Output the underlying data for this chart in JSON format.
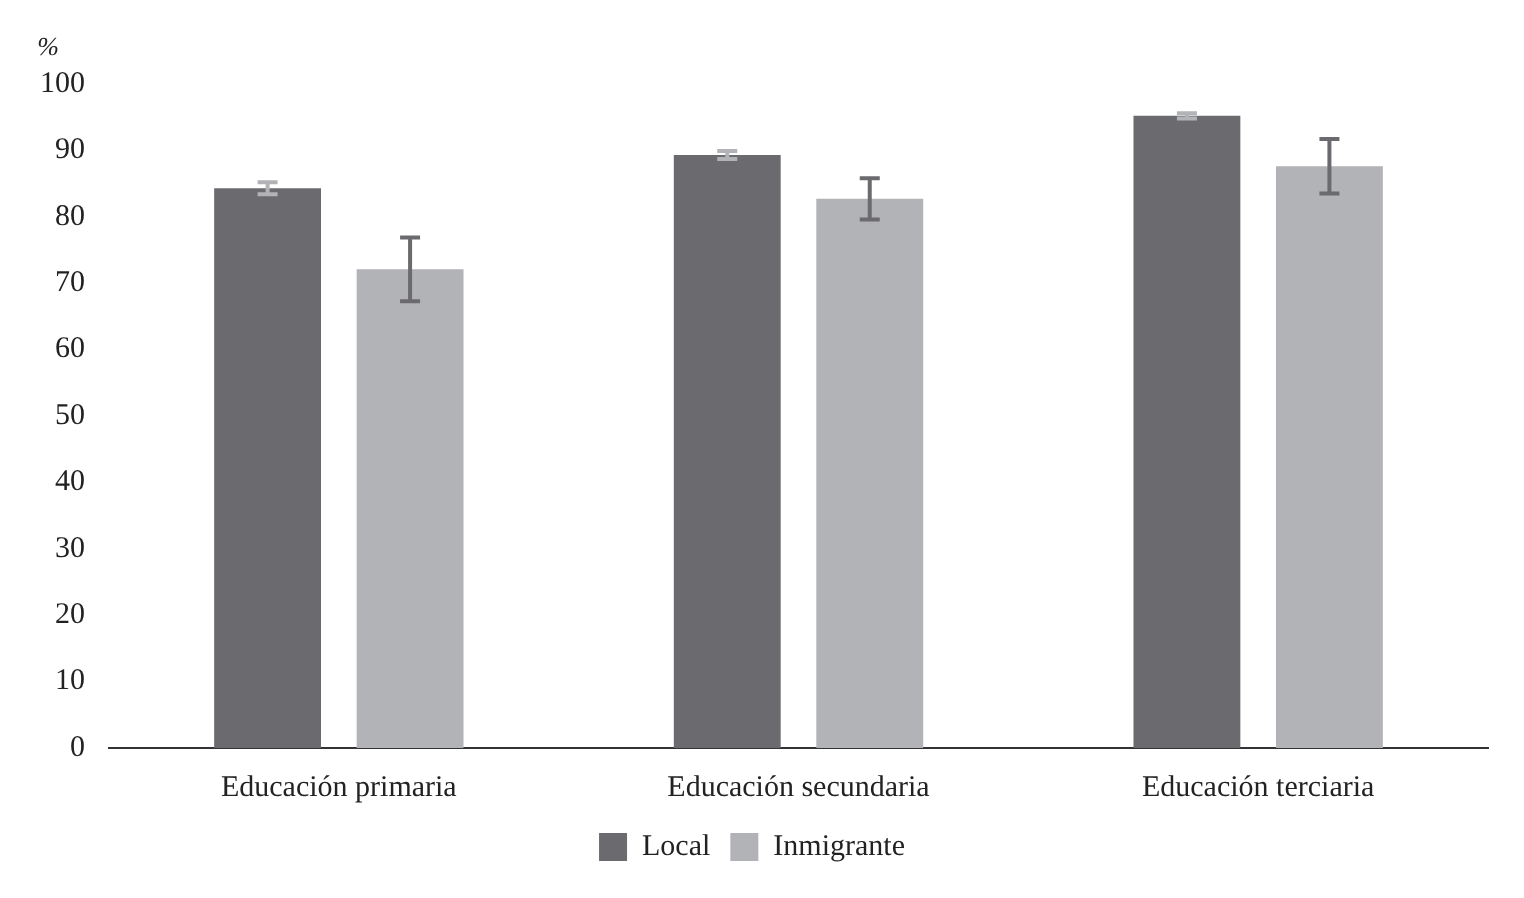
{
  "chart_data": {
    "type": "bar",
    "ylabel": "%",
    "categories": [
      "Educación primaria",
      "Educación secundaria",
      "Educación terciaria"
    ],
    "series": [
      {
        "name": "Local",
        "color": "#6b6b6f",
        "values": [
          84.3,
          89.3,
          95.2
        ],
        "errors": [
          0.9,
          0.6,
          0.4
        ]
      },
      {
        "name": "Inmigrante",
        "color": "#b2b3b6",
        "values": [
          72.1,
          82.7,
          87.6
        ],
        "errors": [
          4.8,
          3.1,
          4.1
        ]
      }
    ],
    "ylim": [
      0,
      100
    ],
    "yticks": [
      0,
      10,
      20,
      30,
      40,
      50,
      60,
      70,
      80,
      90,
      100
    ],
    "grid": false,
    "legend": "bottom"
  }
}
